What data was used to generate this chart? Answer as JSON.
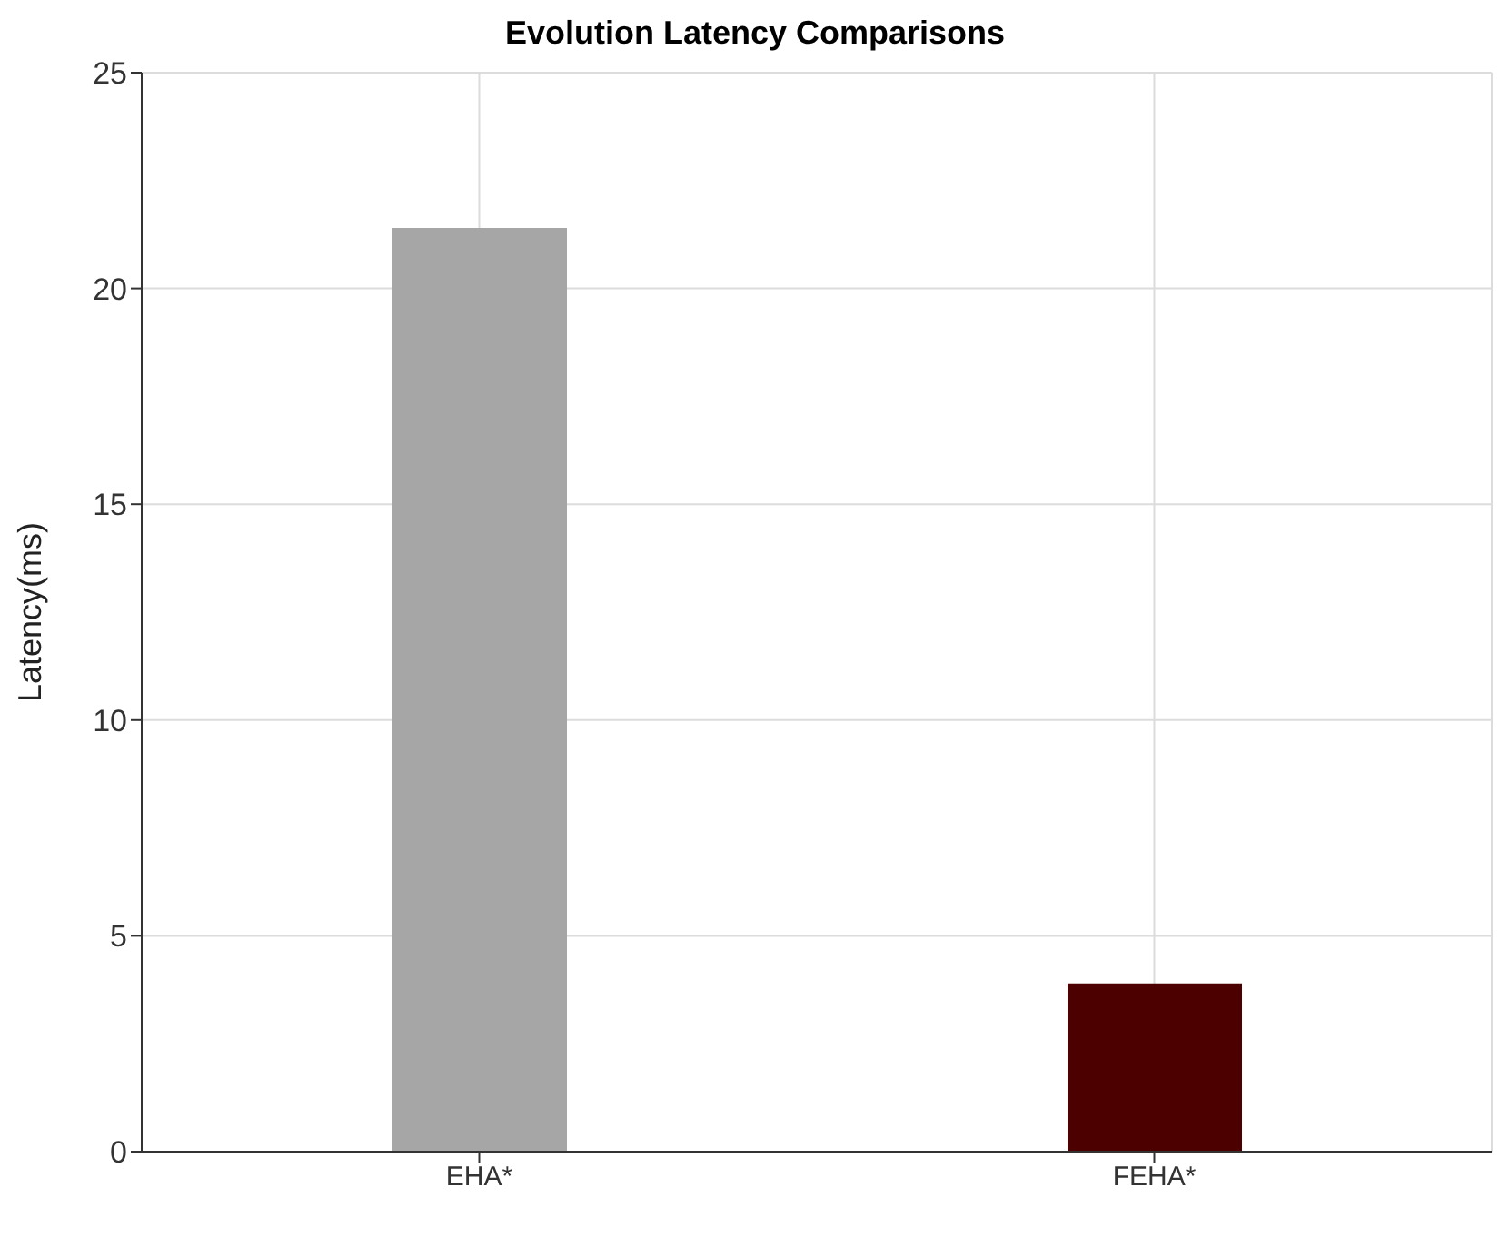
{
  "chart_data": {
    "type": "bar",
    "title": "Evolution Latency Comparisons",
    "ylabel": "Latency(ms)",
    "categories": [
      "EHA*",
      "FEHA*"
    ],
    "values": [
      21.4,
      3.9
    ],
    "colors": [
      "#a6a6a6",
      "#4d0000"
    ],
    "ylim": [
      0,
      25
    ],
    "yticks": [
      0,
      5,
      10,
      15,
      20,
      25
    ],
    "grid": true
  }
}
